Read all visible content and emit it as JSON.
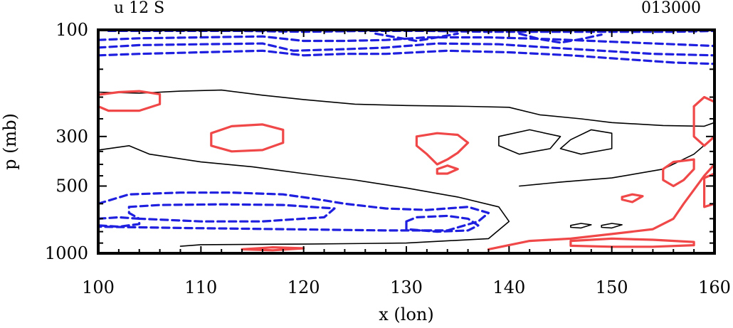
{
  "chart_data": {
    "type": "contour",
    "title_left": "u 12 S",
    "title_right": "013000",
    "xlabel": "x (lon)",
    "ylabel": "p (mb)",
    "xlim": [
      100,
      160
    ],
    "ylim_log_p": [
      1000,
      100
    ],
    "x_ticks": [
      {
        "label": "100",
        "value": 100
      },
      {
        "label": "110",
        "value": 110
      },
      {
        "label": "120",
        "value": 120
      },
      {
        "label": "130",
        "value": 130
      },
      {
        "label": "140",
        "value": 140
      },
      {
        "label": "150",
        "value": 150
      },
      {
        "label": "160",
        "value": 160
      }
    ],
    "y_ticks": [
      {
        "label": "100",
        "value": 100
      },
      {
        "label": "300",
        "value": 300
      },
      {
        "label": "500",
        "value": 500
      },
      {
        "label": "1000",
        "value": 1000
      }
    ],
    "colors": {
      "negative": "#1f1fe0",
      "zero": "#000000",
      "positive": "#f04848"
    },
    "contours": [
      {
        "sign": "negative",
        "points": [
          [
            100,
            130
          ],
          [
            104,
            128
          ],
          [
            110,
            126
          ],
          [
            116,
            124
          ],
          [
            120,
            130
          ],
          [
            124,
            128
          ],
          [
            128,
            128
          ],
          [
            134,
            124
          ],
          [
            140,
            126
          ],
          [
            146,
            130
          ],
          [
            150,
            134
          ],
          [
            156,
            140
          ],
          [
            160,
            142
          ]
        ]
      },
      {
        "sign": "negative",
        "points": [
          [
            100,
            120
          ],
          [
            104,
            117
          ],
          [
            110,
            116
          ],
          [
            116,
            115
          ],
          [
            119,
            124
          ],
          [
            124,
            122
          ],
          [
            128,
            120
          ],
          [
            133,
            115
          ],
          [
            139,
            116
          ],
          [
            144,
            120
          ],
          [
            149,
            124
          ],
          [
            154,
            128
          ],
          [
            160,
            130
          ]
        ]
      },
      {
        "sign": "negative",
        "points": [
          [
            100,
            111
          ],
          [
            104,
            109
          ],
          [
            110,
            108
          ],
          [
            116,
            107
          ],
          [
            120,
            112
          ],
          [
            124,
            112
          ],
          [
            128,
            111
          ],
          [
            132,
            108
          ],
          [
            138,
            108
          ],
          [
            144,
            110
          ],
          [
            150,
            113
          ],
          [
            156,
            116
          ],
          [
            160,
            118
          ]
        ]
      },
      {
        "sign": "negative",
        "points": [
          [
            101,
            101
          ],
          [
            108,
            101
          ],
          [
            114,
            101
          ],
          [
            120,
            102
          ],
          [
            126,
            101
          ],
          [
            132,
            101
          ],
          [
            138,
            102
          ],
          [
            144,
            102
          ],
          [
            150,
            102
          ],
          [
            156,
            102
          ],
          [
            160,
            101
          ]
        ]
      },
      {
        "sign": "negative",
        "points": [
          [
            127,
            104
          ],
          [
            129,
            108
          ],
          [
            131,
            112
          ],
          [
            133,
            108
          ],
          [
            135,
            104
          ]
        ]
      },
      {
        "sign": "negative",
        "points": [
          [
            141,
            104
          ],
          [
            143,
            110
          ],
          [
            145,
            114
          ],
          [
            147,
            110
          ],
          [
            149,
            105
          ]
        ]
      },
      {
        "sign": "negative",
        "points": [
          [
            100,
            600
          ],
          [
            103,
            545
          ],
          [
            108,
            535
          ],
          [
            113,
            535
          ],
          [
            118,
            545
          ],
          [
            121,
            570
          ],
          [
            124,
            600
          ],
          [
            128,
            630
          ],
          [
            132,
            640
          ],
          [
            136,
            620
          ],
          [
            138,
            660
          ],
          [
            137,
            720
          ],
          [
            134,
            790
          ],
          [
            128,
            790
          ],
          [
            118,
            780
          ],
          [
            108,
            770
          ],
          [
            100,
            760
          ]
        ]
      },
      {
        "sign": "negative",
        "points": [
          [
            103,
            620
          ],
          [
            106,
            608
          ],
          [
            112,
            604
          ],
          [
            118,
            608
          ],
          [
            123,
            630
          ],
          [
            122,
            690
          ],
          [
            116,
            720
          ],
          [
            110,
            720
          ],
          [
            104,
            700
          ],
          [
            103,
            660
          ],
          [
            103,
            620
          ]
        ]
      },
      {
        "sign": "negative",
        "points": [
          [
            100,
            700
          ],
          [
            102,
            690
          ],
          [
            104,
            700
          ],
          [
            104,
            740
          ],
          [
            102,
            760
          ],
          [
            100,
            750
          ]
        ]
      },
      {
        "sign": "negative",
        "points": [
          [
            130,
            720
          ],
          [
            131,
            690
          ],
          [
            134,
            680
          ],
          [
            136,
            700
          ],
          [
            137,
            750
          ],
          [
            136,
            790
          ],
          [
            133,
            800
          ],
          [
            130,
            780
          ],
          [
            130,
            720
          ]
        ]
      },
      {
        "sign": "zero",
        "points": [
          [
            100,
            190
          ],
          [
            104,
            192
          ],
          [
            108,
            188
          ],
          [
            112,
            186
          ],
          [
            116,
            196
          ],
          [
            120,
            205
          ],
          [
            125,
            215
          ],
          [
            130,
            218
          ],
          [
            136,
            220
          ],
          [
            140,
            222
          ],
          [
            143,
            240
          ],
          [
            147,
            250
          ],
          [
            150,
            260
          ],
          [
            155,
            268
          ],
          [
            159,
            270
          ],
          [
            160,
            260
          ]
        ]
      },
      {
        "sign": "zero",
        "points": [
          [
            100,
            345
          ],
          [
            103,
            330
          ],
          [
            105,
            360
          ],
          [
            110,
            390
          ],
          [
            115,
            410
          ],
          [
            120,
            440
          ],
          [
            125,
            470
          ],
          [
            130,
            510
          ],
          [
            135,
            560
          ],
          [
            139,
            620
          ],
          [
            140,
            720
          ],
          [
            138,
            860
          ],
          [
            130,
            900
          ],
          [
            120,
            910
          ],
          [
            110,
            915
          ],
          [
            108,
            930
          ]
        ]
      },
      {
        "sign": "zero",
        "points": [
          [
            139,
            300
          ],
          [
            142,
            280
          ],
          [
            145,
            300
          ],
          [
            144,
            340
          ],
          [
            141,
            360
          ],
          [
            139,
            330
          ],
          [
            139,
            300
          ]
        ]
      },
      {
        "sign": "zero",
        "points": [
          [
            146,
            310
          ],
          [
            148,
            280
          ],
          [
            150,
            290
          ],
          [
            150,
            340
          ],
          [
            147,
            360
          ],
          [
            145,
            340
          ],
          [
            146,
            310
          ]
        ]
      },
      {
        "sign": "zero",
        "points": [
          [
            141,
            500
          ],
          [
            145,
            480
          ],
          [
            150,
            460
          ],
          [
            155,
            420
          ],
          [
            158,
            360
          ],
          [
            160,
            300
          ]
        ]
      },
      {
        "sign": "zero",
        "points": [
          [
            149,
            750
          ],
          [
            150,
            735
          ],
          [
            151,
            745
          ],
          [
            150,
            770
          ],
          [
            149,
            765
          ],
          [
            149,
            750
          ]
        ]
      },
      {
        "sign": "zero",
        "points": [
          [
            146,
            750
          ],
          [
            147,
            735
          ],
          [
            148,
            745
          ],
          [
            147,
            770
          ],
          [
            146,
            765
          ],
          [
            146,
            750
          ]
        ]
      },
      {
        "sign": "positive",
        "points": [
          [
            100,
            195
          ],
          [
            102,
            190
          ],
          [
            104,
            188
          ],
          [
            106,
            194
          ],
          [
            106,
            215
          ],
          [
            104,
            230
          ],
          [
            101,
            230
          ],
          [
            100,
            220
          ]
        ]
      },
      {
        "sign": "positive",
        "points": [
          [
            111,
            290
          ],
          [
            113,
            270
          ],
          [
            116,
            265
          ],
          [
            118,
            280
          ],
          [
            118,
            320
          ],
          [
            116,
            345
          ],
          [
            113,
            350
          ],
          [
            111,
            330
          ],
          [
            111,
            290
          ]
        ]
      },
      {
        "sign": "positive",
        "points": [
          [
            131,
            300
          ],
          [
            133,
            290
          ],
          [
            135,
            295
          ],
          [
            136,
            320
          ],
          [
            135,
            355
          ],
          [
            134,
            380
          ],
          [
            133,
            400
          ],
          [
            132,
            360
          ],
          [
            131,
            330
          ],
          [
            131,
            300
          ]
        ]
      },
      {
        "sign": "positive",
        "points": [
          [
            133,
            420
          ],
          [
            134,
            405
          ],
          [
            135,
            420
          ],
          [
            134,
            440
          ],
          [
            133,
            440
          ],
          [
            133,
            420
          ]
        ]
      },
      {
        "sign": "positive",
        "points": [
          [
            138,
            960
          ],
          [
            142,
            880
          ],
          [
            146,
            860
          ],
          [
            150,
            820
          ],
          [
            154,
            780
          ],
          [
            156,
            700
          ],
          [
            157,
            600
          ],
          [
            158,
            520
          ],
          [
            159,
            450
          ],
          [
            160,
            400
          ]
        ]
      },
      {
        "sign": "positive",
        "points": [
          [
            146,
            880
          ],
          [
            150,
            860
          ],
          [
            154,
            870
          ],
          [
            158,
            890
          ],
          [
            158,
            920
          ],
          [
            154,
            935
          ],
          [
            150,
            935
          ],
          [
            146,
            925
          ],
          [
            146,
            880
          ]
        ]
      },
      {
        "sign": "positive",
        "points": [
          [
            158,
            220
          ],
          [
            159,
            200
          ],
          [
            160,
            210
          ],
          [
            160,
            300
          ],
          [
            159,
            330
          ],
          [
            158,
            300
          ],
          [
            158,
            220
          ]
        ]
      },
      {
        "sign": "positive",
        "points": [
          [
            155,
            420
          ],
          [
            156,
            390
          ],
          [
            158,
            380
          ],
          [
            158,
            420
          ],
          [
            157,
            470
          ],
          [
            156,
            500
          ],
          [
            155,
            470
          ],
          [
            155,
            420
          ]
        ]
      },
      {
        "sign": "positive",
        "points": [
          [
            159,
            460
          ],
          [
            160,
            440
          ],
          [
            160,
            600
          ],
          [
            159,
            620
          ],
          [
            159,
            460
          ]
        ]
      },
      {
        "sign": "positive",
        "points": [
          [
            114,
            960
          ],
          [
            117,
            940
          ],
          [
            120,
            950
          ],
          [
            117,
            970
          ],
          [
            114,
            960
          ]
        ]
      },
      {
        "sign": "positive",
        "points": [
          [
            151,
            560
          ],
          [
            152,
            545
          ],
          [
            153,
            555
          ],
          [
            152,
            590
          ],
          [
            151,
            575
          ],
          [
            151,
            560
          ]
        ]
      }
    ]
  }
}
